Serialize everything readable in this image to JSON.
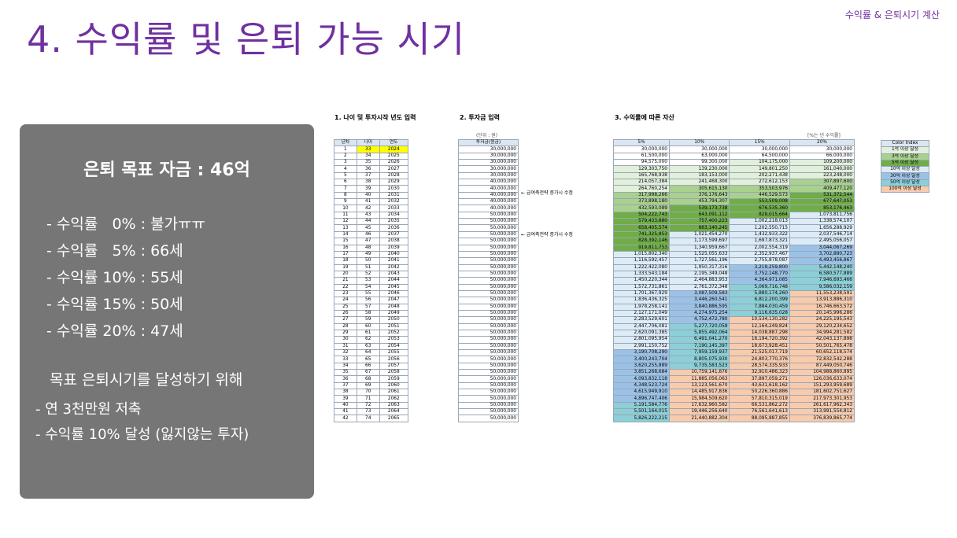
{
  "corner_text": "수익률 & 은퇴시기 계산",
  "title": "4. 수익률 및 은퇴 가능 시기",
  "panel": {
    "heading": "은퇴 목표 자금 : 46억",
    "rates": [
      "- 수익률   0% : 불가ㅠㅠ",
      "- 수익률   5% : 66세",
      "- 수익률 10% : 55세",
      "- 수익률 15% : 50세",
      "- 수익률 20% : 47세"
    ],
    "goal": "목표 은퇴시기를 달성하기 위해",
    "bullets": [
      "- 연 3천만원 저축",
      "- 수익률 10% 달성 (잃지않는 투자)"
    ]
  },
  "sections": {
    "s1": "1. 나이 및 투자시작 년도 입력",
    "s2": "2. 투자금 입력",
    "s3": "3. 수익률에 따른 자산"
  },
  "unit_label": "(단위 : 원)",
  "rate_note": "[%는 년 수익률]",
  "t1_headers": [
    "년차",
    "나이",
    "연도"
  ],
  "t2_header": "투자금(원금)",
  "t3_headers": [
    "5%",
    "10%",
    "15%",
    "20%"
  ],
  "notes": [
    "← 급여축전략 증가시 수정",
    "← 급여축전략 증가시 수정"
  ],
  "legend": {
    "title": "Color Index",
    "items": [
      "1억 이상 달성",
      "3억 이상 달성",
      "5억 이상 달성",
      "10억 이상 달성",
      "30억 이상 달성",
      "50억 이상 달성",
      "100억 이상 달성"
    ]
  },
  "colors": {
    "purple": "#7030a0",
    "panel": "#767676",
    "legend": [
      "#e2efda",
      "#a9d08e",
      "#70ad47",
      "#ddebf7",
      "#9bc2e6",
      "#8ccfd6",
      "#f8cbad"
    ]
  },
  "rows": [
    [
      "1",
      "33",
      "2024",
      "30,000,000",
      "30,000,000",
      "30,000,000",
      "30,000,000",
      "30,000,000"
    ],
    [
      "2",
      "34",
      "2025",
      "30,000,000",
      "61,500,000",
      "63,000,000",
      "64,500,000",
      "66,000,000"
    ],
    [
      "3",
      "35",
      "2026",
      "30,000,000",
      "94,575,000",
      "99,300,000",
      "104,175,000",
      "109,200,000"
    ],
    [
      "4",
      "36",
      "2027",
      "30,000,000",
      "129,303,750",
      "139,230,000",
      "149,801,250",
      "161,040,000"
    ],
    [
      "5",
      "37",
      "2028",
      "30,000,000",
      "165,768,938",
      "183,153,000",
      "202,271,438",
      "223,248,000"
    ],
    [
      "6",
      "38",
      "2029",
      "40,000,000",
      "214,057,384",
      "241,468,300",
      "272,612,153",
      "307,897,600"
    ],
    [
      "7",
      "39",
      "2030",
      "40,000,000",
      "264,760,254",
      "305,615,130",
      "353,503,976",
      "409,477,120"
    ],
    [
      "8",
      "40",
      "2031",
      "40,000,000",
      "317,998,266",
      "376,176,643",
      "446,529,573",
      "531,372,544"
    ],
    [
      "9",
      "41",
      "2032",
      "40,000,000",
      "373,898,180",
      "453,794,307",
      "553,509,008",
      "677,647,053"
    ],
    [
      "10",
      "42",
      "2033",
      "40,000,000",
      "432,593,089",
      "539,173,738",
      "676,535,360",
      "853,176,463"
    ],
    [
      "11",
      "43",
      "2034",
      "50,000,000",
      "504,222,743",
      "643,091,112",
      "828,015,664",
      "1,073,811,756"
    ],
    [
      "12",
      "44",
      "2035",
      "50,000,000",
      "579,433,880",
      "757,400,223",
      "1,002,218,013",
      "1,338,574,107"
    ],
    [
      "13",
      "45",
      "2036",
      "50,000,000",
      "658,405,574",
      "883,140,245",
      "1,202,550,715",
      "1,656,288,929"
    ],
    [
      "14",
      "46",
      "2037",
      "50,000,000",
      "741,325,853",
      "1,021,454,270",
      "1,432,933,322",
      "2,037,546,714"
    ],
    [
      "15",
      "47",
      "2038",
      "50,000,000",
      "828,392,146",
      "1,173,599,697",
      "1,697,873,321",
      "2,495,056,057"
    ],
    [
      "16",
      "48",
      "2039",
      "50,000,000",
      "919,811,753",
      "1,340,959,667",
      "2,002,554,319",
      "3,044,067,269"
    ],
    [
      "17",
      "49",
      "2040",
      "50,000,000",
      "1,015,802,340",
      "1,525,055,633",
      "2,352,937,467",
      "3,702,880,723"
    ],
    [
      "18",
      "50",
      "2041",
      "50,000,000",
      "1,116,592,457",
      "1,727,561,196",
      "2,755,878,087",
      "4,493,456,867"
    ],
    [
      "19",
      "51",
      "2042",
      "50,000,000",
      "1,222,422,080",
      "1,950,317,316",
      "3,219,259,800",
      "5,442,148,240"
    ],
    [
      "20",
      "52",
      "2043",
      "50,000,000",
      "1,333,543,184",
      "2,195,349,048",
      "3,752,148,770",
      "6,580,577,889"
    ],
    [
      "21",
      "53",
      "2044",
      "50,000,000",
      "1,450,220,344",
      "2,464,883,953",
      "4,364,971,085",
      "7,946,693,466"
    ],
    [
      "22",
      "54",
      "2045",
      "50,000,000",
      "1,572,731,861",
      "2,761,372,348",
      "5,069,716,748",
      "9,586,032,159"
    ],
    [
      "23",
      "55",
      "2046",
      "50,000,000",
      "1,701,367,929",
      "3,087,509,583",
      "5,880,174,260",
      "11,553,238,591"
    ],
    [
      "24",
      "56",
      "2047",
      "50,000,000",
      "1,836,436,325",
      "3,446,260,541",
      "6,812,200,399",
      "13,913,886,310"
    ],
    [
      "25",
      "57",
      "2048",
      "50,000,000",
      "1,978,258,141",
      "3,840,886,595",
      "7,884,030,459",
      "16,746,663,572"
    ],
    [
      "26",
      "58",
      "2049",
      "50,000,000",
      "2,127,171,049",
      "4,274,975,254",
      "9,116,635,028",
      "20,145,996,286"
    ],
    [
      "27",
      "59",
      "2050",
      "50,000,000",
      "2,283,529,601",
      "4,752,472,780",
      "10,534,130,282",
      "24,225,195,543"
    ],
    [
      "28",
      "60",
      "2051",
      "50,000,000",
      "2,447,706,081",
      "5,277,720,058",
      "12,164,249,824",
      "29,120,234,652"
    ],
    [
      "29",
      "61",
      "2052",
      "50,000,000",
      "2,620,091,385",
      "5,855,492,064",
      "14,038,887,298",
      "34,994,281,582"
    ],
    [
      "30",
      "62",
      "2053",
      "50,000,000",
      "2,801,095,954",
      "6,491,041,270",
      "16,194,720,392",
      "42,043,137,898"
    ],
    [
      "31",
      "63",
      "2054",
      "50,000,000",
      "2,991,150,752",
      "7,190,145,397",
      "18,673,928,451",
      "50,501,765,478"
    ],
    [
      "32",
      "64",
      "2055",
      "50,000,000",
      "3,190,708,290",
      "7,959,159,937",
      "21,525,017,719",
      "60,652,118,574"
    ],
    [
      "33",
      "65",
      "2056",
      "50,000,000",
      "3,400,243,704",
      "8,805,075,930",
      "24,803,770,376",
      "72,832,542,288"
    ],
    [
      "34",
      "66",
      "2057",
      "50,000,000",
      "3,620,255,889",
      "9,735,583,523",
      "28,574,335,933",
      "87,449,050,746"
    ],
    [
      "35",
      "67",
      "2058",
      "50,000,000",
      "3,851,268,684",
      "10,759,141,876",
      "32,910,486,323",
      "104,988,860,895"
    ],
    [
      "36",
      "68",
      "2059",
      "50,000,000",
      "4,093,832,118",
      "11,885,056,063",
      "37,897,059,271",
      "126,036,633,074"
    ],
    [
      "37",
      "69",
      "2060",
      "50,000,000",
      "4,348,523,724",
      "13,123,561,670",
      "43,631,618,162",
      "151,293,959,689"
    ],
    [
      "38",
      "70",
      "2061",
      "50,000,000",
      "4,615,949,910",
      "14,485,917,836",
      "50,226,360,886",
      "181,602,751,627"
    ],
    [
      "39",
      "71",
      "2062",
      "50,000,000",
      "4,896,747,406",
      "15,984,509,620",
      "57,810,315,019",
      "217,973,301,953"
    ],
    [
      "40",
      "72",
      "2063",
      "50,000,000",
      "5,191,584,776",
      "17,632,960,582",
      "66,531,862,272",
      "261,617,962,343"
    ],
    [
      "41",
      "73",
      "2064",
      "50,000,000",
      "5,501,164,015",
      "19,446,256,640",
      "76,561,641,613",
      "313,991,554,812"
    ],
    [
      "42",
      "74",
      "2065",
      "50,000,000",
      "5,826,222,215",
      "21,440,882,304",
      "88,095,887,855",
      "376,839,865,774"
    ]
  ]
}
